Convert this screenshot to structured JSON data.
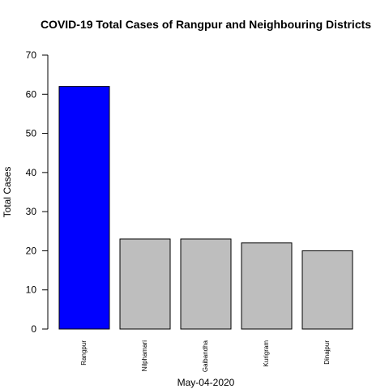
{
  "chart_data": {
    "type": "bar",
    "title": "COVID-19 Total Cases of Rangpur and Neighbouring Districts",
    "xlabel": "May-04-2020",
    "ylabel": "Total Cases",
    "categories": [
      "Rangpur",
      "Nilphamari",
      "Gaibandha",
      "Kurigram",
      "Dinajpur"
    ],
    "values": [
      62,
      23,
      23,
      22,
      20
    ],
    "bar_colors": [
      "#0000ff",
      "#bebebe",
      "#bebebe",
      "#bebebe",
      "#bebebe"
    ],
    "ylim": [
      0,
      70
    ],
    "yticks": [
      0,
      10,
      20,
      30,
      40,
      50,
      60,
      70
    ],
    "grid": false,
    "legend": "none"
  }
}
